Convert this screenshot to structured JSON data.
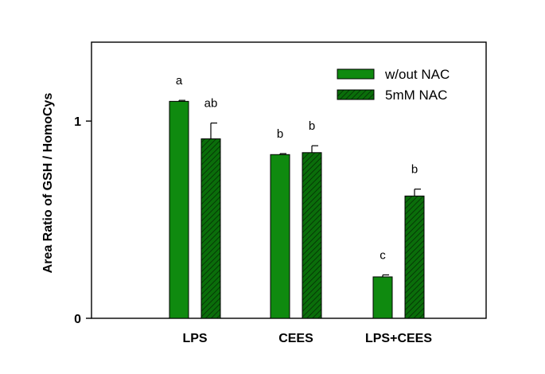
{
  "chart_data": {
    "type": "bar",
    "title": "",
    "xlabel": "",
    "ylabel": "Area Ratio of GSH / HomoCys",
    "categories": [
      "LPS",
      "CEES",
      "LPS+CEES"
    ],
    "ylim": [
      0,
      1.4
    ],
    "yticks": [
      0,
      1
    ],
    "series": [
      {
        "name": "w/out NAC",
        "values": [
          1.1,
          0.83,
          0.21
        ],
        "errors": [
          0.005,
          0.005,
          0.01
        ],
        "labels": [
          "a",
          "b",
          "c"
        ],
        "color": "#0f8a0f",
        "pattern": "solid"
      },
      {
        "name": "5mM NAC",
        "values": [
          0.91,
          0.84,
          0.62
        ],
        "errors": [
          0.08,
          0.035,
          0.035
        ],
        "labels": [
          "ab",
          "b",
          "b"
        ],
        "color": "#0c6a0c",
        "pattern": "hatched"
      }
    ],
    "legend_position": "top-right",
    "grid": false
  }
}
